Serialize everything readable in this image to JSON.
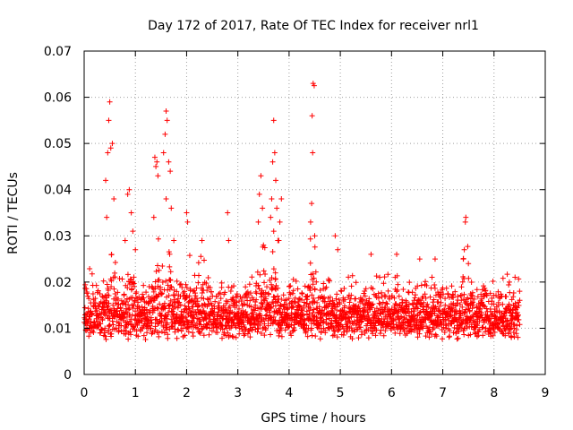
{
  "chart_data": {
    "type": "scatter",
    "title": "Day 172 of 2017, Rate Of TEC Index for receiver nrl1",
    "xlabel": "GPS time / hours",
    "ylabel": "ROTI / TECUs",
    "xlim": [
      0,
      9
    ],
    "ylim": [
      0,
      0.07
    ],
    "grid": true,
    "marker": "+",
    "color": "#ff0000",
    "xticks": [
      0,
      1,
      2,
      3,
      4,
      5,
      6,
      7,
      8,
      9
    ],
    "xtick_labels": [
      "0",
      "1",
      "2",
      "3",
      "4",
      "5",
      "6",
      "7",
      "8",
      "9"
    ],
    "yticks": [
      0,
      0.01,
      0.02,
      0.03,
      0.04,
      0.05,
      0.06,
      0.07
    ],
    "ytick_labels": [
      "0",
      "0.01",
      "0.02",
      "0.03",
      "0.04",
      "0.05",
      "0.06",
      "0.07"
    ],
    "peaks": [
      {
        "x": 0.5,
        "y": 0.059
      },
      {
        "x": 0.48,
        "y": 0.055
      },
      {
        "x": 0.52,
        "y": 0.049
      },
      {
        "x": 0.46,
        "y": 0.048
      },
      {
        "x": 0.55,
        "y": 0.05
      },
      {
        "x": 0.42,
        "y": 0.042
      },
      {
        "x": 0.58,
        "y": 0.038
      },
      {
        "x": 0.44,
        "y": 0.034
      },
      {
        "x": 0.88,
        "y": 0.04
      },
      {
        "x": 0.85,
        "y": 0.039
      },
      {
        "x": 0.92,
        "y": 0.035
      },
      {
        "x": 0.95,
        "y": 0.031
      },
      {
        "x": 0.8,
        "y": 0.029
      },
      {
        "x": 1.0,
        "y": 0.027
      },
      {
        "x": 1.38,
        "y": 0.047
      },
      {
        "x": 1.42,
        "y": 0.046
      },
      {
        "x": 1.4,
        "y": 0.045
      },
      {
        "x": 1.44,
        "y": 0.043
      },
      {
        "x": 1.36,
        "y": 0.034
      },
      {
        "x": 1.6,
        "y": 0.057
      },
      {
        "x": 1.62,
        "y": 0.055
      },
      {
        "x": 1.58,
        "y": 0.052
      },
      {
        "x": 1.55,
        "y": 0.048
      },
      {
        "x": 1.65,
        "y": 0.046
      },
      {
        "x": 1.68,
        "y": 0.044
      },
      {
        "x": 1.6,
        "y": 0.038
      },
      {
        "x": 1.7,
        "y": 0.036
      },
      {
        "x": 1.75,
        "y": 0.029
      },
      {
        "x": 2.0,
        "y": 0.035
      },
      {
        "x": 2.02,
        "y": 0.033
      },
      {
        "x": 2.3,
        "y": 0.029
      },
      {
        "x": 2.8,
        "y": 0.035
      },
      {
        "x": 2.82,
        "y": 0.029
      },
      {
        "x": 3.45,
        "y": 0.043
      },
      {
        "x": 3.42,
        "y": 0.039
      },
      {
        "x": 3.48,
        "y": 0.036
      },
      {
        "x": 3.4,
        "y": 0.033
      },
      {
        "x": 3.5,
        "y": 0.028
      },
      {
        "x": 3.7,
        "y": 0.055
      },
      {
        "x": 3.72,
        "y": 0.048
      },
      {
        "x": 3.68,
        "y": 0.046
      },
      {
        "x": 3.74,
        "y": 0.042
      },
      {
        "x": 3.66,
        "y": 0.038
      },
      {
        "x": 3.76,
        "y": 0.036
      },
      {
        "x": 3.64,
        "y": 0.034
      },
      {
        "x": 3.7,
        "y": 0.031
      },
      {
        "x": 3.78,
        "y": 0.029
      },
      {
        "x": 3.85,
        "y": 0.038
      },
      {
        "x": 3.82,
        "y": 0.033
      },
      {
        "x": 3.8,
        "y": 0.029
      },
      {
        "x": 4.47,
        "y": 0.063
      },
      {
        "x": 4.49,
        "y": 0.0625
      },
      {
        "x": 4.45,
        "y": 0.056
      },
      {
        "x": 4.46,
        "y": 0.048
      },
      {
        "x": 4.44,
        "y": 0.037
      },
      {
        "x": 4.42,
        "y": 0.033
      },
      {
        "x": 4.5,
        "y": 0.03
      },
      {
        "x": 4.9,
        "y": 0.03
      },
      {
        "x": 4.95,
        "y": 0.027
      },
      {
        "x": 5.6,
        "y": 0.026
      },
      {
        "x": 6.1,
        "y": 0.026
      },
      {
        "x": 6.55,
        "y": 0.025
      },
      {
        "x": 6.85,
        "y": 0.025
      },
      {
        "x": 7.45,
        "y": 0.034
      },
      {
        "x": 7.44,
        "y": 0.033
      },
      {
        "x": 7.42,
        "y": 0.027
      },
      {
        "x": 7.4,
        "y": 0.025
      },
      {
        "x": 7.5,
        "y": 0.024
      },
      {
        "x": 8.3,
        "y": 0.02
      },
      {
        "x": 8.5,
        "y": 0.018
      }
    ],
    "baseline": {
      "x_range": [
        0.0,
        8.5
      ],
      "typical_y_range": [
        0.004,
        0.02
      ],
      "point_count": 2600,
      "description_note": "dense band of points, most between 0.005 and 0.018 TECU"
    }
  }
}
